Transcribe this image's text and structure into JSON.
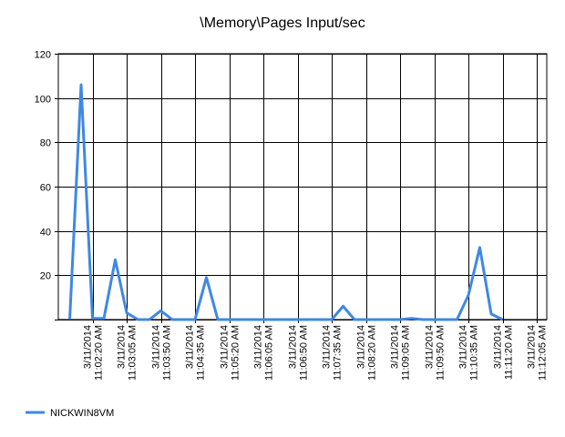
{
  "chart_data": {
    "type": "line",
    "title": "\\Memory\\Pages Input/sec",
    "xlabel": "",
    "ylabel": "",
    "ylim": [
      0,
      120
    ],
    "yticks": [
      0,
      20,
      40,
      60,
      80,
      100,
      120
    ],
    "grid": true,
    "legend": "bottom-left",
    "x_ticks": [
      {
        "date": "3/11/2014",
        "time": "11:02:20 AM"
      },
      {
        "date": "3/11/2014",
        "time": "11:03:05 AM"
      },
      {
        "date": "3/11/2014",
        "time": "11:03:50 AM"
      },
      {
        "date": "3/11/2014",
        "time": "11:04:35 AM"
      },
      {
        "date": "3/11/2014",
        "time": "11:05:20 AM"
      },
      {
        "date": "3/11/2014",
        "time": "11:06:05 AM"
      },
      {
        "date": "3/11/2014",
        "time": "11:06:50 AM"
      },
      {
        "date": "3/11/2014",
        "time": "11:07:35 AM"
      },
      {
        "date": "3/11/2014",
        "time": "11:08:20 AM"
      },
      {
        "date": "3/11/2014",
        "time": "11:09:05 AM"
      },
      {
        "date": "3/11/2014",
        "time": "11:09:50 AM"
      },
      {
        "date": "3/11/2014",
        "time": "11:10:35 AM"
      },
      {
        "date": "3/11/2014",
        "time": "11:11:20 AM"
      },
      {
        "date": "3/11/2014",
        "time": "11:12:05 AM"
      }
    ],
    "series": [
      {
        "name": "NICKWIN8VM",
        "color": "#3f88e3",
        "values": [
          0,
          106,
          0.5,
          0.5,
          27,
          3,
          0,
          0,
          4,
          0,
          0,
          0,
          19,
          0,
          0,
          0,
          0,
          0,
          0,
          0,
          0,
          0,
          0,
          0,
          6,
          0,
          0,
          0,
          0,
          0,
          0.5,
          0,
          0,
          0,
          0,
          11,
          32.5,
          2.5,
          0
        ]
      }
    ]
  }
}
